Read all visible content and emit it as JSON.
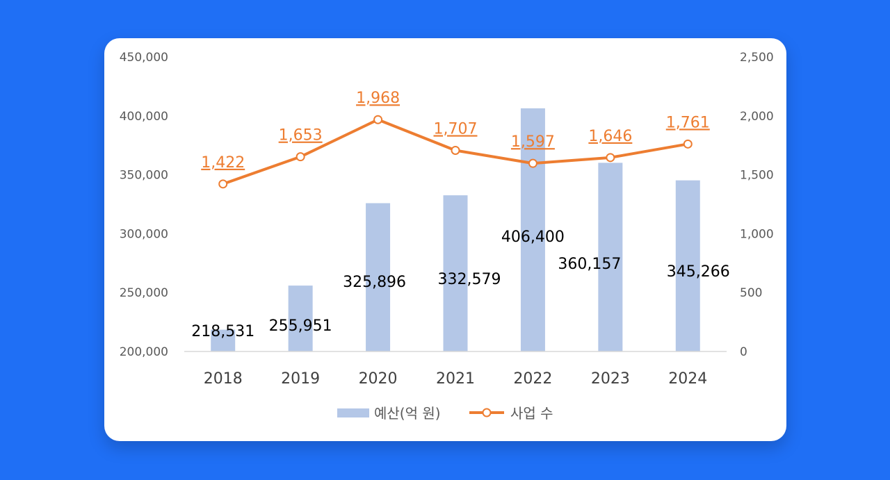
{
  "chart_data": {
    "type": "bar",
    "categories": [
      "2018",
      "2019",
      "2020",
      "2021",
      "2022",
      "2023",
      "2024"
    ],
    "series": [
      {
        "name": "예산(억 원)",
        "kind": "bar",
        "axis": "left",
        "values": [
          218531,
          255951,
          325896,
          332579,
          406400,
          360157,
          345266
        ],
        "labels": [
          "218,531",
          "255,951",
          "325,896",
          "332,579",
          "406,400",
          "360,157",
          "345,266"
        ]
      },
      {
        "name": "사업 수",
        "kind": "line",
        "axis": "right",
        "values": [
          1422,
          1653,
          1968,
          1707,
          1597,
          1646,
          1761
        ],
        "labels": [
          "1,422",
          "1,653",
          "1,968",
          "1,707",
          "1,597",
          "1,646",
          "1,761"
        ]
      }
    ],
    "y_left": {
      "range": [
        200000,
        450000
      ],
      "ticks": [
        "200,000",
        "250,000",
        "300,000",
        "350,000",
        "400,000",
        "450,000"
      ]
    },
    "y_right": {
      "range": [
        0,
        2500
      ],
      "ticks": [
        "0",
        "500",
        "1,000",
        "1,500",
        "2,000",
        "2,500"
      ]
    },
    "legend": {
      "position": "bottom",
      "items": [
        "예산(억 원)",
        "사업 수"
      ]
    },
    "grid": false,
    "colors": {
      "bar": "#b4c7e7",
      "line": "#ed7d31",
      "marker_fill": "#ffffff",
      "background": "#1f6ff5"
    }
  }
}
